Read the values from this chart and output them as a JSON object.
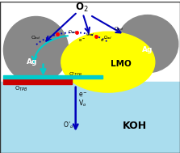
{
  "bg_color": "#ffffff",
  "koh_color": "#aaddee",
  "lmo_color": "#ffff00",
  "ag_color": "#888888",
  "electrode_color": "#cc0000",
  "electrode_top_color": "#00cccc",
  "arrow_color": "#0000bb",
  "cyan_arrow_color": "#00cccc",
  "red_dot_color": "#ff0000",
  "text_color": "#000000",
  "koh_text": "KOH",
  "lmo_text": "LMO",
  "ag_text": "Ag",
  "o2_text": "O$_2$"
}
